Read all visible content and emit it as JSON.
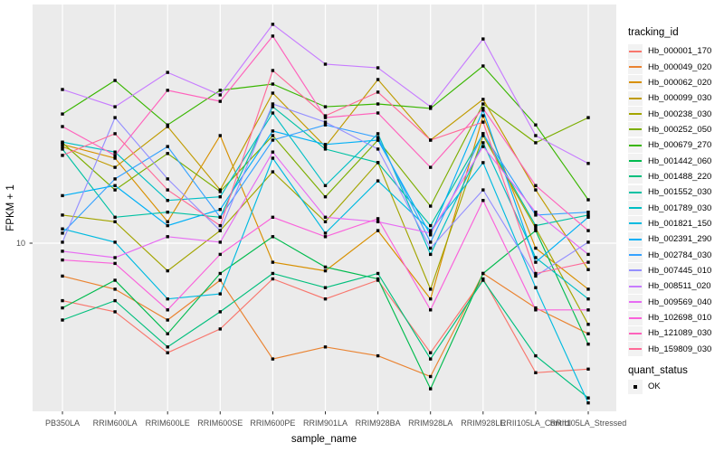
{
  "figure": {
    "background": "#FFFFFF",
    "panel_background": "#EBEBEB",
    "grid_color": "#FFFFFF",
    "tick_mark_color": "#333333",
    "axis_text_color": "#4D4D4D",
    "marker_color": "#000000",
    "legend_key_fill": "#F2F2F2"
  },
  "chart_data": {
    "type": "line",
    "x_label": "sample_name",
    "y_label": "FPKM + 1",
    "y_scale": "log10",
    "y_tick_label": "10",
    "y_ticks": [
      10
    ],
    "y_range_approx": [
      1.7,
      120
    ],
    "grid": "vertical-major-and-y10",
    "legend_position": "right",
    "categories": [
      "PB350LA",
      "RRIM600LA",
      "RRIM600LE",
      "RRIM600SE",
      "RRIM600PE",
      "RRIM901LA",
      "RRIM928BA",
      "RRIM928LA",
      "RRIM928LE",
      "RRII105LA_Control",
      "RRII105LA_Stressed"
    ],
    "legend": {
      "color_title": "tracking_id",
      "shape_title": "quant_status",
      "shape_entries": [
        {
          "label": "OK",
          "marker": "black-square"
        }
      ]
    },
    "series": [
      {
        "name": "Hb_000001_170",
        "color": "#F8766D",
        "values": [
          5.5,
          4.9,
          3.2,
          4.1,
          6.9,
          5.6,
          6.8,
          3.2,
          6.9,
          2.6,
          2.7
        ]
      },
      {
        "name": "Hb_000049_020",
        "color": "#EA8331",
        "values": [
          7.1,
          6.2,
          4.5,
          6.8,
          3.0,
          3.4,
          3.1,
          2.5,
          7.3,
          5.1,
          3.9
        ]
      },
      {
        "name": "Hb_000062_020",
        "color": "#D89000",
        "values": [
          27.9,
          24.2,
          12.5,
          30.6,
          8.2,
          7.5,
          11.4,
          5.6,
          37.6,
          9.5,
          6.2
        ]
      },
      {
        "name": "Hb_000099_030",
        "color": "#C09B00",
        "values": [
          27.3,
          22.0,
          33.6,
          17.4,
          47.6,
          27.3,
          54.8,
          29.2,
          44.6,
          17.4,
          7.6
        ]
      },
      {
        "name": "Hb_000238_030",
        "color": "#A3A500",
        "values": [
          13.4,
          12.5,
          7.5,
          11.4,
          21.0,
          12.5,
          23.1,
          6.2,
          30.6,
          11.7,
          4.3
        ]
      },
      {
        "name": "Hb_000252_050",
        "color": "#7CAE00",
        "values": [
          28.4,
          17.4,
          25.4,
          17.1,
          30.6,
          16.2,
          29.2,
          14.7,
          42.5,
          28.4,
          36.9
        ]
      },
      {
        "name": "Hb_000679_270",
        "color": "#39B600",
        "values": [
          38.3,
          54.3,
          34.2,
          49.0,
          52.3,
          41.3,
          42.5,
          40.6,
          63.1,
          34.2,
          15.7
        ]
      },
      {
        "name": "Hb_001442_060",
        "color": "#00BB4E",
        "values": [
          5.1,
          6.8,
          3.9,
          7.3,
          10.7,
          7.8,
          6.9,
          2.2,
          7.3,
          11.4,
          3.5
        ]
      },
      {
        "name": "Hb_001488_220",
        "color": "#00BF7D",
        "values": [
          4.5,
          5.5,
          3.4,
          4.9,
          7.3,
          6.3,
          7.3,
          3.0,
          6.8,
          3.1,
          2.0
        ]
      },
      {
        "name": "Hb_001552_030",
        "color": "#00C1A3",
        "values": [
          26.6,
          13.1,
          13.8,
          13.1,
          41.3,
          26.6,
          23.1,
          12.0,
          31.2,
          12.0,
          13.4
        ]
      },
      {
        "name": "Hb_001789_030",
        "color": "#00BFC4",
        "values": [
          28.6,
          25.8,
          15.6,
          16.2,
          38.7,
          18.2,
          31.2,
          8.9,
          28.4,
          8.6,
          5.6
        ]
      },
      {
        "name": "Hb_001821_150",
        "color": "#00BAE0",
        "values": [
          11.6,
          10.1,
          5.6,
          5.9,
          24.2,
          11.1,
          19.1,
          11.4,
          23.1,
          6.3,
          1.9
        ]
      },
      {
        "name": "Hb_002391_290",
        "color": "#00B0F6",
        "values": [
          16.4,
          18.2,
          12.0,
          14.2,
          32.1,
          27.9,
          29.2,
          10.9,
          39.9,
          8.2,
          13.1
        ]
      },
      {
        "name": "Hb_002784_030",
        "color": "#35A2FF",
        "values": [
          11.1,
          19.5,
          27.3,
          13.1,
          29.2,
          34.2,
          30.0,
          10.1,
          31.2,
          13.4,
          13.8
        ]
      },
      {
        "name": "Hb_007445_010",
        "color": "#9590FF",
        "values": [
          10.1,
          36.9,
          19.5,
          11.4,
          42.5,
          35.2,
          26.6,
          9.5,
          17.4,
          7.1,
          10.1
        ]
      },
      {
        "name": "Hb_008511_020",
        "color": "#C77CFF",
        "values": [
          49.4,
          41.3,
          59.0,
          46.7,
          97.3,
          64.3,
          61.9,
          41.3,
          83.6,
          30.6,
          22.9
        ]
      },
      {
        "name": "Hb_009569_040",
        "color": "#E76BF3",
        "values": [
          9.2,
          8.6,
          10.7,
          10.1,
          25.8,
          13.1,
          12.5,
          11.1,
          27.3,
          13.8,
          8.9
        ]
      },
      {
        "name": "Hb_102698_010",
        "color": "#FA62DB",
        "values": [
          8.4,
          8.1,
          5.0,
          8.9,
          13.1,
          10.7,
          12.9,
          5.0,
          15.6,
          5.0,
          5.0
        ]
      },
      {
        "name": "Hb_121089_030",
        "color": "#FF62BC",
        "values": [
          33.6,
          24.9,
          49.0,
          43.7,
          86.1,
          36.9,
          38.7,
          22.0,
          40.6,
          18.2,
          11.4
        ]
      },
      {
        "name": "Hb_159809_030",
        "color": "#FF6A98",
        "values": [
          24.9,
          31.2,
          17.4,
          12.0,
          60.2,
          37.6,
          48.1,
          29.2,
          35.2,
          7.3,
          8.2
        ]
      }
    ]
  }
}
